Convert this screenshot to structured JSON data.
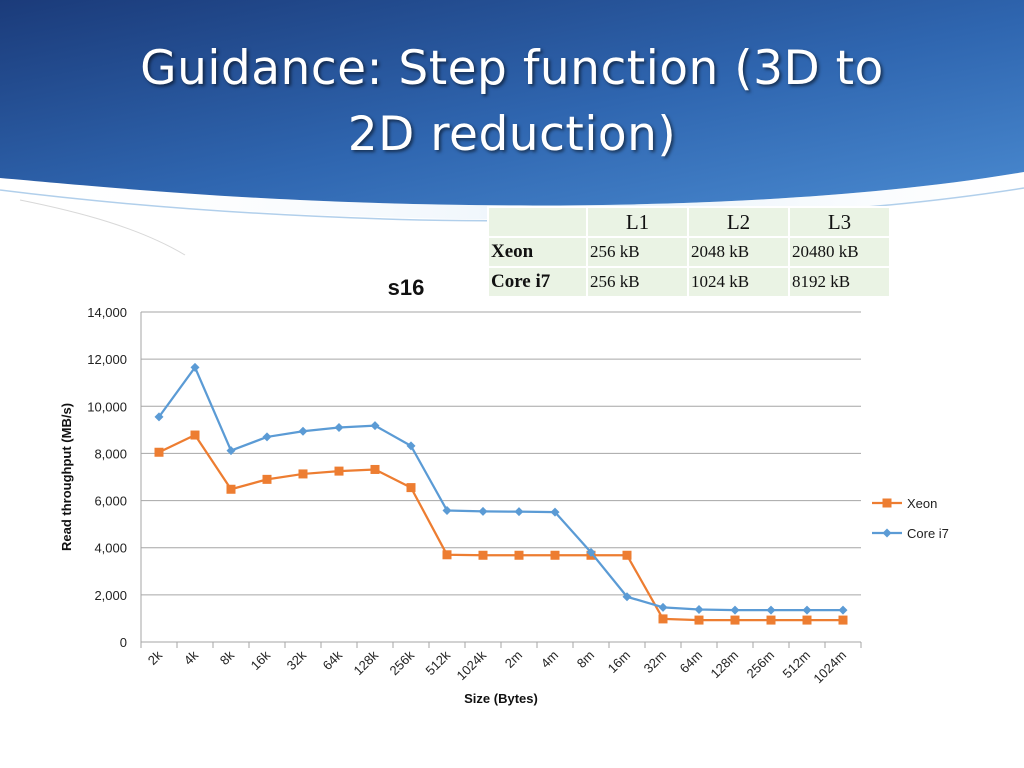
{
  "slide": {
    "title_line1": "Guidance: Step function (3D to",
    "title_line2": "2D reduction)"
  },
  "cache_table": {
    "headers": [
      "",
      "L1",
      "L2",
      "L3"
    ],
    "rows": [
      {
        "name": "Xeon",
        "l1": "256 kB",
        "l2": "2048 kB",
        "l3": "20480 kB"
      },
      {
        "name": "Core i7",
        "l1": "256 kB",
        "l2": "1024 kB",
        "l3": "8192 kB"
      }
    ]
  },
  "chart_data": {
    "type": "line",
    "title": "s16",
    "xlabel": "Size (Bytes)",
    "ylabel": "Read throughput (MB/s)",
    "ylim": [
      0,
      14000
    ],
    "yticks": [
      0,
      2000,
      4000,
      6000,
      8000,
      10000,
      12000,
      14000
    ],
    "ytick_labels": [
      "0",
      "2,000",
      "4,000",
      "6,000",
      "8,000",
      "10,000",
      "12,000",
      "14,000"
    ],
    "categories": [
      "2k",
      "4k",
      "8k",
      "16k",
      "32k",
      "64k",
      "128k",
      "256k",
      "512k",
      "1024k",
      "2m",
      "4m",
      "8m",
      "16m",
      "32m",
      "64m",
      "128m",
      "256m",
      "512m",
      "1024m"
    ],
    "grid": true,
    "legend_position": "right",
    "series": [
      {
        "name": "Xeon",
        "color": "#ed7d31",
        "marker": "square",
        "values": [
          8050,
          8780,
          6480,
          6900,
          7130,
          7250,
          7320,
          6550,
          3700,
          3680,
          3680,
          3680,
          3680,
          3680,
          980,
          930,
          930,
          930,
          930,
          930
        ]
      },
      {
        "name": "Core i7",
        "color": "#5b9bd5",
        "marker": "diamond",
        "values": [
          9550,
          11650,
          8120,
          8700,
          8940,
          9100,
          9180,
          8320,
          5580,
          5540,
          5530,
          5510,
          3800,
          1920,
          1470,
          1380,
          1350,
          1350,
          1350,
          1350
        ]
      }
    ]
  }
}
